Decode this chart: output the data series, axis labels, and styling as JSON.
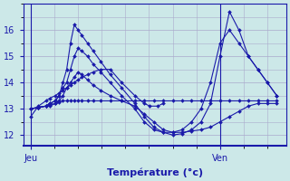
{
  "xlabel": "Température (°c)",
  "background_color": "#cce8e8",
  "plot_bg_color": "#cce8e8",
  "line_color": "#1a1aaa",
  "grid_color": "#aaaacc",
  "xtick_labels": [
    "Jeu",
    "Ven"
  ],
  "xtick_positions": [
    0.0,
    1.0
  ],
  "ytick_labels": [
    "12",
    "13",
    "14",
    "15",
    "16"
  ],
  "ytick_positions": [
    12,
    13,
    14,
    15,
    16
  ],
  "ylim": [
    11.6,
    17.0
  ],
  "xlim": [
    -0.04,
    1.35
  ],
  "series": [
    {
      "x": [
        0.0,
        0.04,
        0.08,
        0.1,
        0.13,
        0.15,
        0.17,
        0.19,
        0.21,
        0.23,
        0.25,
        0.27,
        0.3,
        0.33,
        0.37,
        0.42,
        0.48,
        0.55,
        0.6,
        0.63,
        0.67,
        0.7
      ],
      "y": [
        12.7,
        13.1,
        13.3,
        13.4,
        13.5,
        13.6,
        13.7,
        13.8,
        13.9,
        14.0,
        14.1,
        14.2,
        14.3,
        14.4,
        14.5,
        14.5,
        14.0,
        13.5,
        13.2,
        13.1,
        13.1,
        13.2
      ]
    },
    {
      "x": [
        0.0,
        0.04,
        0.08,
        0.1,
        0.13,
        0.15,
        0.17,
        0.19,
        0.21,
        0.23,
        0.25,
        0.27,
        0.3,
        0.33,
        0.37,
        0.42,
        0.48,
        0.55,
        0.6,
        0.65,
        0.7,
        0.75,
        0.8,
        0.85,
        0.9,
        0.95,
        1.0,
        1.05,
        1.1,
        1.15,
        1.2,
        1.25,
        1.3
      ],
      "y": [
        13.0,
        13.05,
        13.1,
        13.1,
        13.2,
        13.25,
        13.3,
        13.3,
        13.3,
        13.3,
        13.3,
        13.3,
        13.3,
        13.3,
        13.3,
        13.3,
        13.3,
        13.3,
        13.3,
        13.3,
        13.3,
        13.3,
        13.3,
        13.3,
        13.3,
        13.3,
        13.3,
        13.3,
        13.3,
        13.3,
        13.3,
        13.3,
        13.3
      ]
    },
    {
      "x": [
        0.0,
        0.04,
        0.08,
        0.1,
        0.13,
        0.15,
        0.17,
        0.19,
        0.21,
        0.23,
        0.25,
        0.27,
        0.3,
        0.33,
        0.37,
        0.42,
        0.48,
        0.55,
        0.6,
        0.65,
        0.7,
        0.75,
        0.8,
        0.85,
        0.9,
        0.95,
        1.0,
        1.05,
        1.1,
        1.15,
        1.2,
        1.25,
        1.3
      ],
      "y": [
        13.0,
        13.05,
        13.1,
        13.15,
        13.2,
        13.3,
        13.5,
        13.8,
        14.0,
        14.2,
        14.4,
        14.3,
        14.1,
        13.9,
        13.7,
        13.5,
        13.3,
        13.1,
        12.8,
        12.5,
        12.2,
        12.1,
        12.1,
        12.15,
        12.2,
        12.3,
        12.5,
        12.7,
        12.9,
        13.1,
        13.2,
        13.2,
        13.2
      ]
    },
    {
      "x": [
        0.0,
        0.04,
        0.08,
        0.1,
        0.13,
        0.15,
        0.17,
        0.19,
        0.21,
        0.23,
        0.25,
        0.27,
        0.3,
        0.33,
        0.37,
        0.42,
        0.48,
        0.55,
        0.6,
        0.65,
        0.7,
        0.75,
        0.8,
        0.85,
        0.9,
        0.95,
        1.0,
        1.05,
        1.1,
        1.15,
        1.2,
        1.25,
        1.3
      ],
      "y": [
        13.0,
        13.05,
        13.1,
        13.2,
        13.3,
        13.5,
        13.8,
        14.0,
        14.5,
        15.0,
        15.3,
        15.2,
        15.0,
        14.7,
        14.4,
        14.0,
        13.5,
        13.0,
        12.5,
        12.2,
        12.1,
        12.1,
        12.2,
        12.5,
        13.0,
        14.0,
        15.5,
        16.0,
        15.5,
        15.0,
        14.5,
        14.0,
        13.5
      ]
    },
    {
      "x": [
        0.0,
        0.04,
        0.08,
        0.1,
        0.13,
        0.15,
        0.17,
        0.19,
        0.21,
        0.23,
        0.25,
        0.27,
        0.3,
        0.33,
        0.37,
        0.42,
        0.48,
        0.55,
        0.6,
        0.65,
        0.7,
        0.75,
        0.8,
        0.85,
        0.9,
        0.95,
        1.0,
        1.05,
        1.1,
        1.15,
        1.2,
        1.25,
        1.3
      ],
      "y": [
        13.0,
        13.05,
        13.1,
        13.2,
        13.3,
        13.5,
        14.0,
        14.5,
        15.5,
        16.2,
        16.0,
        15.8,
        15.5,
        15.2,
        14.8,
        14.3,
        13.8,
        13.2,
        12.7,
        12.3,
        12.1,
        12.0,
        12.05,
        12.2,
        12.5,
        13.2,
        15.0,
        16.7,
        16.0,
        15.0,
        14.5,
        14.0,
        13.5
      ]
    }
  ]
}
